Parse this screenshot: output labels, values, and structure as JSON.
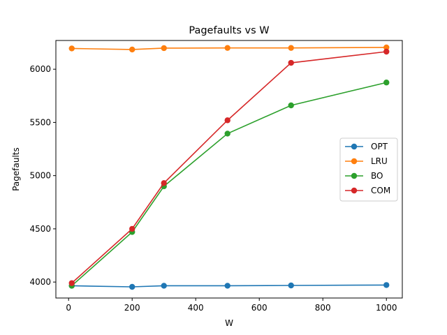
{
  "chart_data": {
    "type": "line",
    "title": "Pagefaults vs W",
    "xlabel": "W",
    "ylabel": "Pagefaults",
    "x": [
      10,
      200,
      300,
      500,
      700,
      1000
    ],
    "xlim": [
      -40,
      1050
    ],
    "ylim": [
      3850,
      6270
    ],
    "xticks": [
      0,
      200,
      400,
      600,
      800,
      1000
    ],
    "yticks": [
      4000,
      4500,
      5000,
      5500,
      6000
    ],
    "grid": false,
    "legend_position": "center-right",
    "series": [
      {
        "name": "OPT",
        "color": "#1f77b4",
        "values": [
          3965,
          3955,
          3965,
          3965,
          3968,
          3972
        ]
      },
      {
        "name": "LRU",
        "color": "#ff7f0e",
        "values": [
          6195,
          6185,
          6198,
          6200,
          6200,
          6205
        ]
      },
      {
        "name": "BO",
        "color": "#2ca02c",
        "values": [
          3965,
          4470,
          4900,
          5395,
          5660,
          5875
        ]
      },
      {
        "name": "COM",
        "color": "#d62728",
        "values": [
          3990,
          4500,
          4930,
          5520,
          6060,
          6165
        ]
      }
    ]
  }
}
